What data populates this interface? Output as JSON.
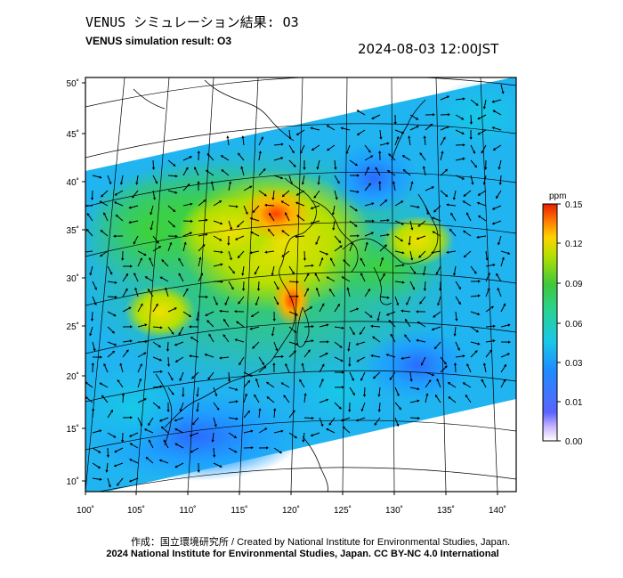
{
  "header": {
    "title_jp": "VENUS シミュレーション結果: O3",
    "title_en": "VENUS simulation result: O3",
    "timestamp": "2024-08-03 12:00JST"
  },
  "map": {
    "lat_labels": [
      "50˚",
      "45˚",
      "40˚",
      "35˚",
      "30˚",
      "25˚",
      "20˚",
      "15˚",
      "10˚"
    ],
    "lon_labels": [
      "100˚",
      "105˚",
      "110˚",
      "115˚",
      "120˚",
      "125˚",
      "130˚",
      "135˚",
      "140˚"
    ]
  },
  "colorbar": {
    "unit": "ppm",
    "ticks": [
      "0.15",
      "0.12",
      "0.09",
      "0.06",
      "0.03",
      "0.01",
      "0.00"
    ]
  },
  "credits": {
    "line1": "作成：国立環境研究所 / Created by National Institute for Environmental Studies, Japan.",
    "line2": "2024 National Institute for Environmental Studies, Japan. CC BY-NC 4.0 International"
  }
}
